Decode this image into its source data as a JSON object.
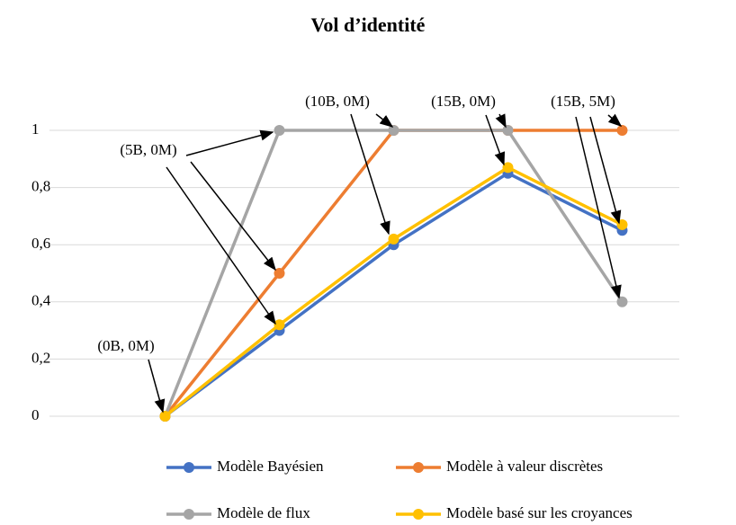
{
  "chart_data": {
    "type": "line",
    "title": "Vol d’identité",
    "categories": [
      null,
      null,
      null,
      null,
      null
    ],
    "series": [
      {
        "name": "Modèle Bayésien",
        "color": "#4472c4",
        "values": [
          0,
          0.3,
          0.6,
          0.85,
          0.65
        ]
      },
      {
        "name": "Modèle à valeur discrètes",
        "color": "#ed7d31",
        "values": [
          0,
          0.5,
          1,
          1,
          1
        ]
      },
      {
        "name": "Modèle de flux",
        "color": "#a5a5a5",
        "values": [
          0,
          1,
          1,
          1,
          0.4
        ]
      },
      {
        "name": "Modèle basé sur les croyances",
        "color": "#ffc000",
        "values": [
          0,
          0.32,
          0.62,
          0.87,
          0.67
        ]
      }
    ],
    "ylim": [
      0,
      1
    ],
    "yticks": [
      0,
      {
        "value": 0.2,
        "label": "0,2"
      },
      {
        "value": 0.4,
        "label": "0,4"
      },
      {
        "value": 0.6,
        "label": "0,6"
      },
      {
        "value": 0.8,
        "label": "0,8"
      },
      1
    ],
    "grid": true,
    "legend": "bottom",
    "annotations": [
      "(0B, 0M)",
      "(5B, 0M)",
      "(10B, 0M)",
      "(15B, 0M)",
      "(15B, 5M)"
    ]
  }
}
